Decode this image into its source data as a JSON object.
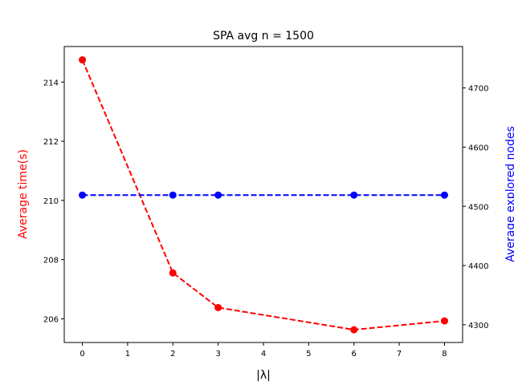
{
  "chart_data": {
    "type": "line",
    "title": "SPA avg n = 1500",
    "xlabel": "|λ|",
    "ylabel_left": "Average time(s)",
    "ylabel_right": "Average explored nodes",
    "x": [
      0,
      2,
      3,
      6,
      8
    ],
    "xlim": [
      -0.4,
      8.4
    ],
    "xticks": [
      "0",
      "1",
      "2",
      "3",
      "4",
      "5",
      "6",
      "7",
      "8"
    ],
    "ylim_left": [
      205.2,
      215.2
    ],
    "yticks_left": [
      "206",
      "208",
      "210",
      "212",
      "214"
    ],
    "ylim_right": [
      4270,
      4770
    ],
    "yticks_right": [
      "4300",
      "4400",
      "4500",
      "4600",
      "4700"
    ],
    "grid": false,
    "series": [
      {
        "axis": "left",
        "color": "#ff0000",
        "linestyle": "dashed",
        "marker": "circle",
        "values": [
          214.75,
          207.55,
          206.38,
          205.63,
          205.93
        ]
      },
      {
        "axis": "right",
        "color": "#0000ff",
        "linestyle": "dashed",
        "marker": "circle",
        "values": [
          4519,
          4519,
          4519,
          4519,
          4519
        ]
      }
    ]
  }
}
